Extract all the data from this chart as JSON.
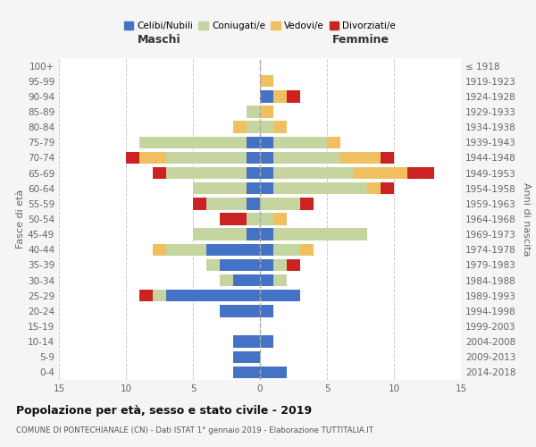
{
  "age_groups": [
    "0-4",
    "5-9",
    "10-14",
    "15-19",
    "20-24",
    "25-29",
    "30-34",
    "35-39",
    "40-44",
    "45-49",
    "50-54",
    "55-59",
    "60-64",
    "65-69",
    "70-74",
    "75-79",
    "80-84",
    "85-89",
    "90-94",
    "95-99",
    "100+"
  ],
  "birth_years": [
    "2014-2018",
    "2009-2013",
    "2004-2008",
    "1999-2003",
    "1994-1998",
    "1989-1993",
    "1984-1988",
    "1979-1983",
    "1974-1978",
    "1969-1973",
    "1964-1968",
    "1959-1963",
    "1954-1958",
    "1949-1953",
    "1944-1948",
    "1939-1943",
    "1934-1938",
    "1929-1933",
    "1924-1928",
    "1919-1923",
    "≤ 1918"
  ],
  "males": {
    "celibi": [
      2,
      2,
      2,
      0,
      3,
      7,
      2,
      3,
      4,
      1,
      0,
      1,
      1,
      1,
      1,
      1,
      0,
      0,
      0,
      0,
      0
    ],
    "coniugati": [
      0,
      0,
      0,
      0,
      0,
      1,
      1,
      1,
      3,
      4,
      1,
      3,
      4,
      6,
      6,
      8,
      1,
      1,
      0,
      0,
      0
    ],
    "vedovi": [
      0,
      0,
      0,
      0,
      0,
      0,
      0,
      0,
      1,
      0,
      0,
      0,
      0,
      0,
      2,
      0,
      1,
      0,
      0,
      0,
      0
    ],
    "divorziati": [
      0,
      0,
      0,
      0,
      0,
      1,
      0,
      0,
      0,
      0,
      2,
      1,
      0,
      1,
      1,
      0,
      0,
      0,
      0,
      0,
      0
    ]
  },
  "females": {
    "nubili": [
      2,
      0,
      1,
      0,
      1,
      3,
      1,
      1,
      1,
      1,
      0,
      0,
      1,
      1,
      1,
      1,
      0,
      0,
      1,
      0,
      0
    ],
    "coniugate": [
      0,
      0,
      0,
      0,
      0,
      0,
      1,
      1,
      2,
      7,
      1,
      3,
      7,
      6,
      5,
      4,
      1,
      0,
      0,
      0,
      0
    ],
    "vedove": [
      0,
      0,
      0,
      0,
      0,
      0,
      0,
      0,
      1,
      0,
      1,
      0,
      1,
      4,
      3,
      1,
      1,
      1,
      1,
      1,
      0
    ],
    "divorziate": [
      0,
      0,
      0,
      0,
      0,
      0,
      0,
      1,
      0,
      0,
      0,
      1,
      1,
      2,
      1,
      0,
      0,
      0,
      1,
      0,
      0
    ]
  },
  "colors": {
    "celibi_nubili": "#4472c4",
    "coniugati": "#c5d5a0",
    "vedovi": "#f0c060",
    "divorziati": "#cc2222"
  },
  "xlim": 15,
  "title": "Popolazione per età, sesso e stato civile - 2019",
  "subtitle": "COMUNE DI PONTECHIANALE (CN) - Dati ISTAT 1° gennaio 2019 - Elaborazione TUTTITALIA.IT",
  "ylabel_left": "Fasce di età",
  "ylabel_right": "Anni di nascita",
  "xlabel_left": "Maschi",
  "xlabel_right": "Femmine",
  "bg_color": "#f5f5f5",
  "plot_bg": "#ffffff"
}
